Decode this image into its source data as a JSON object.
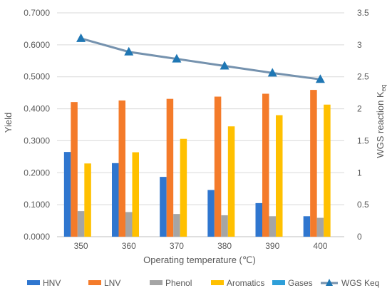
{
  "chart_data": {
    "type": "bar",
    "categories": [
      "350",
      "360",
      "370",
      "380",
      "390",
      "400"
    ],
    "series": [
      {
        "name": "HNV",
        "color": "#2F76CF",
        "axis": "left",
        "kind": "bar",
        "values": [
          0.265,
          0.23,
          0.187,
          0.146,
          0.105,
          0.064
        ]
      },
      {
        "name": "LNV",
        "color": "#F47B2A",
        "axis": "left",
        "kind": "bar",
        "values": [
          0.421,
          0.426,
          0.431,
          0.438,
          0.447,
          0.459
        ]
      },
      {
        "name": "Phenol",
        "color": "#A5A5A5",
        "axis": "left",
        "kind": "bar",
        "values": [
          0.08,
          0.077,
          0.071,
          0.067,
          0.064,
          0.059
        ]
      },
      {
        "name": "Aromatics",
        "color": "#FFC000",
        "axis": "left",
        "kind": "bar",
        "values": [
          0.229,
          0.264,
          0.306,
          0.345,
          0.38,
          0.413
        ]
      },
      {
        "name": "Gases",
        "color": "#2E9FD9",
        "axis": "left",
        "kind": "bar",
        "values": [
          0,
          0,
          0,
          0,
          0,
          0
        ]
      },
      {
        "name": "WGS Keq",
        "color": "#7592AE",
        "marker_color": "#1F77B4",
        "axis": "right",
        "kind": "line",
        "values": [
          3.1,
          2.89,
          2.78,
          2.67,
          2.56,
          2.46
        ]
      }
    ],
    "title": "",
    "xlabel": "Operating temperature (℃)",
    "ylabel": "Yield",
    "ylabel_right_main": "WGS reaction K",
    "ylabel_right_sub": "eq",
    "ylim": [
      0,
      0.7
    ],
    "ylim_right": [
      0,
      3.5
    ],
    "yticks": [
      "0.0000",
      "0.1000",
      "0.2000",
      "0.3000",
      "0.4000",
      "0.5000",
      "0.6000",
      "0.7000"
    ],
    "yticks_right": [
      "0",
      "0.5",
      "1",
      "1.5",
      "2",
      "2.5",
      "3",
      "3.5"
    ],
    "grid": "horizontal",
    "legend_position": "bottom"
  }
}
